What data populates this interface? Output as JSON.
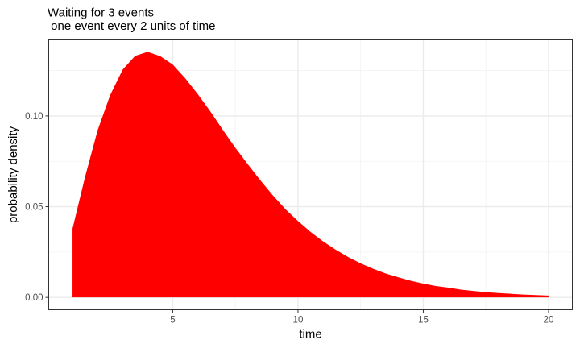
{
  "chart_data": {
    "type": "area",
    "title": "Waiting for 3 events",
    "subtitle": " one event every 2 units of time",
    "xlabel": "time",
    "ylabel": "probability density",
    "xlim": [
      0.05,
      20.95
    ],
    "ylim": [
      -0.0068,
      0.1419
    ],
    "x_ticks": [
      5,
      10,
      15,
      20
    ],
    "x_tick_labels": [
      "5",
      "10",
      "15",
      "20"
    ],
    "x_minor_ticks": [
      2.5,
      7.5,
      12.5,
      17.5
    ],
    "y_ticks": [
      0.0,
      0.05,
      0.1
    ],
    "y_tick_labels": [
      "0.00",
      "0.05",
      "0.10"
    ],
    "y_minor_ticks": [
      0.025,
      0.075,
      0.125
    ],
    "grid": true,
    "fill_color": "#ff0000",
    "series": [
      {
        "x": [
          1,
          1.5,
          2,
          2.5,
          3,
          3.5,
          4,
          4.5,
          5,
          5.5,
          6,
          6.5,
          7,
          7.5,
          8,
          8.5,
          9,
          9.5,
          10,
          10.5,
          11,
          11.5,
          12,
          12.5,
          13,
          13.5,
          14,
          14.5,
          15,
          15.5,
          16,
          16.5,
          17,
          17.5,
          18,
          18.5,
          19,
          19.5,
          20
        ],
        "y": [
          0.0379,
          0.0664,
          0.092,
          0.1114,
          0.1255,
          0.1331,
          0.1353,
          0.1329,
          0.1283,
          0.1207,
          0.112,
          0.1025,
          0.0923,
          0.0824,
          0.0733,
          0.0645,
          0.0562,
          0.0486,
          0.0421,
          0.0361,
          0.0309,
          0.0263,
          0.0223,
          0.0188,
          0.0158,
          0.0132,
          0.0111,
          0.0092,
          0.0076,
          0.0063,
          0.0054,
          0.0043,
          0.0036,
          0.0029,
          0.0024,
          0.002,
          0.0016,
          0.0013,
          0.001
        ]
      }
    ]
  }
}
